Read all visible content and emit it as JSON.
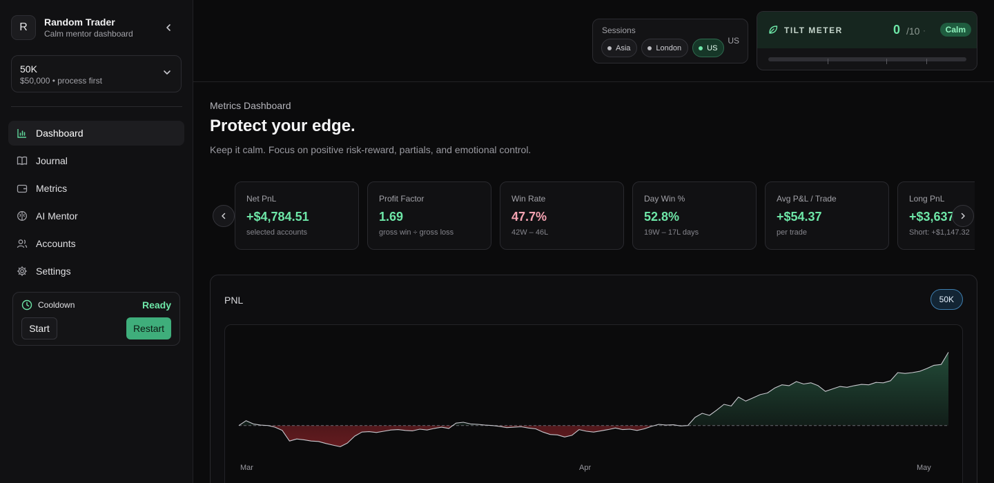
{
  "sidebar": {
    "profile": {
      "initial": "R",
      "name": "Random Trader",
      "subtitle": "Calm mentor dashboard"
    },
    "account": {
      "name": "50K",
      "detail": "$50,000 • process first"
    },
    "nav": [
      {
        "label": "Dashboard",
        "icon": "bar-chart-icon",
        "active": true
      },
      {
        "label": "Journal",
        "icon": "book-icon",
        "active": false
      },
      {
        "label": "Metrics",
        "icon": "wallet-icon",
        "active": false
      },
      {
        "label": "AI Mentor",
        "icon": "brain-icon",
        "active": false
      },
      {
        "label": "Accounts",
        "icon": "users-icon",
        "active": false
      },
      {
        "label": "Settings",
        "icon": "gear-icon",
        "active": false
      }
    ],
    "cooldown": {
      "title": "Cooldown",
      "status": "Ready",
      "start_label": "Start",
      "restart_label": "Restart"
    }
  },
  "topbar": {
    "sessions": {
      "title": "Sessions",
      "current": "US",
      "options": [
        {
          "label": "Asia",
          "active": false
        },
        {
          "label": "London",
          "active": false
        },
        {
          "label": "US",
          "active": true
        }
      ]
    },
    "tilt": {
      "title": "TILT METER",
      "value": "0",
      "max": "/10",
      "separator": "·",
      "state": "Calm",
      "level": 0
    }
  },
  "main": {
    "breadcrumb": "Metrics Dashboard",
    "headline": "Protect your edge.",
    "subline": "Keep it calm. Focus on positive risk-reward, partials, and emotional control.",
    "metrics": [
      {
        "label": "Net PnL",
        "value": "+$4,784.51",
        "sub": "selected accounts",
        "tone": "green"
      },
      {
        "label": "Profit Factor",
        "value": "1.69",
        "sub": "gross win ÷ gross loss",
        "tone": "green"
      },
      {
        "label": "Win Rate",
        "value": "47.7%",
        "sub": "42W – 46L",
        "tone": "pink"
      },
      {
        "label": "Day Win %",
        "value": "52.8%",
        "sub": "19W – 17L days",
        "tone": "green"
      },
      {
        "label": "Avg P&L / Trade",
        "value": "+$54.37",
        "sub": "per trade",
        "tone": "green"
      },
      {
        "label": "Long PnL",
        "value": "+$3,637",
        "sub": "Short: +$1,147.32",
        "tone": "green"
      }
    ],
    "pnl": {
      "title": "PNL",
      "account_badge": "50K"
    }
  },
  "chart_data": {
    "type": "area",
    "title": "PNL",
    "x_ticks": [
      "Mar",
      "Apr",
      "May"
    ],
    "baseline": 0,
    "ylim": [
      -750,
      2300
    ],
    "colors": {
      "positive": "#2f6e50",
      "negative": "#7a1f24",
      "line": "#c9c9cf"
    },
    "values": [
      0,
      120,
      40,
      10,
      0,
      -40,
      -120,
      -380,
      -330,
      -350,
      -380,
      -390,
      -440,
      -480,
      -520,
      -430,
      -260,
      -160,
      -150,
      -170,
      -140,
      -110,
      -100,
      -120,
      -130,
      -90,
      -110,
      -70,
      -40,
      -70,
      60,
      80,
      40,
      30,
      10,
      0,
      -20,
      -50,
      -40,
      -30,
      -60,
      -80,
      -160,
      -220,
      -230,
      -280,
      -240,
      -100,
      -140,
      -160,
      -130,
      -100,
      -60,
      -100,
      -90,
      -120,
      -80,
      -20,
      30,
      10,
      20,
      -10,
      0,
      200,
      300,
      250,
      380,
      520,
      480,
      700,
      600,
      680,
      760,
      800,
      920,
      1000,
      980,
      1080,
      1020,
      1050,
      980,
      840,
      900,
      960,
      940,
      980,
      1010,
      1000,
      1060,
      1050,
      1100,
      1300,
      1280,
      1300,
      1330,
      1400,
      1480,
      1500,
      1800
    ]
  }
}
